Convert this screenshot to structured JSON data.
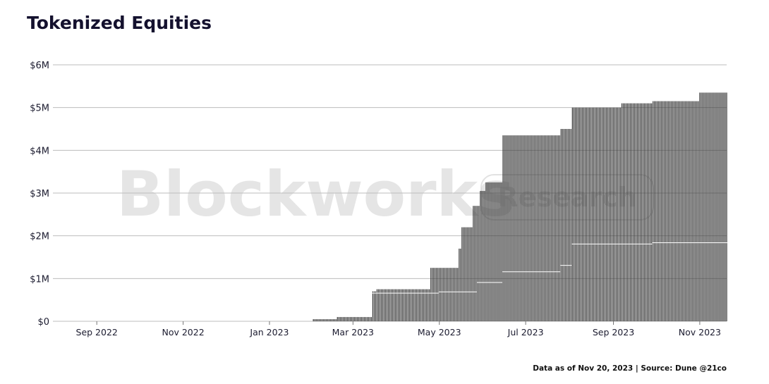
{
  "title": "Tokenized Equities",
  "footer": "Data as of Nov 20, 2023 | Source: Dune @21co",
  "watermark": {
    "brand": "Blockworks",
    "label": "Research"
  },
  "colors": {
    "bar": "#3a3a3a",
    "grid": "#bdbdbd",
    "text": "#1b1b2f",
    "watermark": "#cfcfcf"
  },
  "chart_data": {
    "type": "bar",
    "stacked": true,
    "x_start": "2022-08-01",
    "x_end": "2023-11-20",
    "ylim": [
      0,
      6000000
    ],
    "yticks": [
      0,
      1000000,
      2000000,
      3000000,
      4000000,
      5000000,
      6000000
    ],
    "ytick_labels": [
      "$0",
      "$1M",
      "$2M",
      "$3M",
      "$4M",
      "$5M",
      "$6M"
    ],
    "xticks": [
      "2022-09-01",
      "2022-11-01",
      "2023-01-01",
      "2023-03-01",
      "2023-05-01",
      "2023-07-01",
      "2023-09-01",
      "2023-11-01"
    ],
    "xtick_labels": [
      "Sep 2022",
      "Nov 2022",
      "Jan 2023",
      "Mar 2023",
      "May 2023",
      "Jul 2023",
      "Sep 2023",
      "Nov 2023"
    ],
    "grid": true,
    "total_steps": [
      {
        "date": "2023-02-01",
        "value": 50000
      },
      {
        "date": "2023-02-18",
        "value": 100000
      },
      {
        "date": "2023-03-15",
        "value": 700000
      },
      {
        "date": "2023-03-18",
        "value": 750000
      },
      {
        "date": "2023-04-25",
        "value": 1250000
      },
      {
        "date": "2023-05-15",
        "value": 1700000
      },
      {
        "date": "2023-05-17",
        "value": 2200000
      },
      {
        "date": "2023-05-25",
        "value": 2700000
      },
      {
        "date": "2023-05-30",
        "value": 3050000
      },
      {
        "date": "2023-06-03",
        "value": 3250000
      },
      {
        "date": "2023-06-15",
        "value": 4350000
      },
      {
        "date": "2023-07-26",
        "value": 4500000
      },
      {
        "date": "2023-08-03",
        "value": 5000000
      },
      {
        "date": "2023-09-07",
        "value": 5100000
      },
      {
        "date": "2023-09-29",
        "value": 5150000
      },
      {
        "date": "2023-11-01",
        "value": 5350000
      }
    ],
    "lower_layer_steps": [
      {
        "date": "2023-03-15",
        "value": 650000
      },
      {
        "date": "2023-05-01",
        "value": 680000
      },
      {
        "date": "2023-05-28",
        "value": 900000
      },
      {
        "date": "2023-06-15",
        "value": 1150000
      },
      {
        "date": "2023-07-26",
        "value": 1300000
      },
      {
        "date": "2023-08-03",
        "value": 1800000
      },
      {
        "date": "2023-09-29",
        "value": 1830000
      }
    ]
  }
}
